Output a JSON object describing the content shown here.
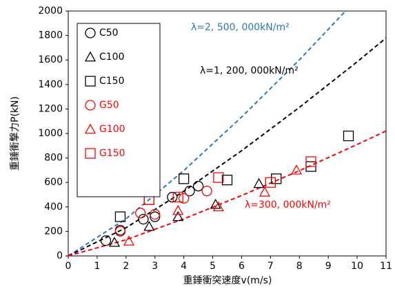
{
  "chart_data": {
    "type": "scatter",
    "x_label": "重錘衝突速度v(m/s)",
    "y_label": "重錘衝撃力P(kN)",
    "xlim": [
      0,
      11
    ],
    "ylim": [
      0,
      2000
    ],
    "xticks": [
      0,
      1,
      2,
      3,
      4,
      5,
      6,
      7,
      8,
      9,
      10,
      11
    ],
    "yticks": [
      0,
      200,
      400,
      600,
      800,
      1000,
      1200,
      1400,
      1600,
      1800,
      2000
    ],
    "series": [
      {
        "name": "C50",
        "color": "#000000",
        "marker": "circle",
        "x": [
          1.3,
          1.8,
          2.6,
          3.0,
          3.6,
          4.2,
          4.5
        ],
        "values": [
          125,
          210,
          300,
          320,
          480,
          530,
          570
        ]
      },
      {
        "name": "C100",
        "color": "#000000",
        "marker": "triangle",
        "x": [
          1.6,
          2.8,
          3.8,
          5.1,
          6.6
        ],
        "values": [
          110,
          240,
          320,
          420,
          590
        ]
      },
      {
        "name": "C150",
        "color": "#000000",
        "marker": "square",
        "x": [
          1.8,
          2.8,
          4.0,
          5.5,
          7.2,
          8.4,
          9.7
        ],
        "values": [
          320,
          460,
          630,
          620,
          630,
          730,
          980
        ]
      },
      {
        "name": "G50",
        "color": "#ff0000",
        "marker": "circle",
        "x": [
          1.8,
          2.5,
          3.0,
          4.0,
          4.8
        ],
        "values": [
          200,
          350,
          340,
          470,
          530
        ]
      },
      {
        "name": "G100",
        "color": "#ff0000",
        "marker": "triangle",
        "x": [
          2.1,
          3.8,
          5.2,
          6.8,
          7.9
        ],
        "values": [
          120,
          370,
          400,
          520,
          700
        ]
      },
      {
        "name": "G150",
        "color": "#ff0000",
        "marker": "square",
        "x": [
          2.8,
          3.8,
          5.2,
          7.0,
          8.4
        ],
        "values": [
          460,
          480,
          640,
          600,
          770
        ]
      }
    ],
    "fits": [
      {
        "label": "λ=2, 500, 000kN/m²",
        "color": "#2e75b6",
        "x": [
          0,
          2,
          4,
          6,
          8,
          9.6
        ],
        "values": [
          0,
          303,
          697,
          1134,
          1601,
          2000
        ]
      },
      {
        "label": "λ=1, 200, 000kN/m²",
        "color": "#000000",
        "x": [
          0,
          2,
          4,
          6,
          8,
          10,
          11
        ],
        "values": [
          0,
          230,
          528,
          859,
          1213,
          1585,
          1780
        ]
      },
      {
        "label": "λ=300, 000kN/m²",
        "color": "#ff0000",
        "x": [
          0,
          2,
          4,
          6,
          8,
          10,
          11
        ],
        "values": [
          0,
          132,
          303,
          493,
          696,
          910,
          1020
        ]
      }
    ]
  }
}
